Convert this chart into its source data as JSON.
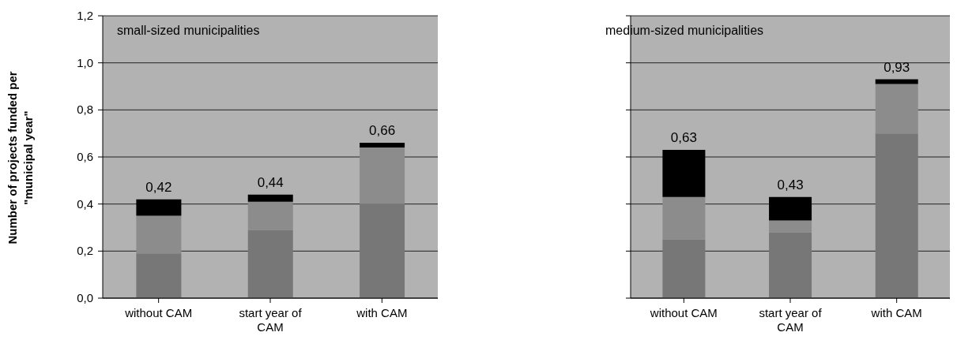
{
  "chart_data": [
    {
      "type": "bar",
      "title": "small-sized municipalities",
      "ylabel": "Number of projects funded per \"municipal year\"",
      "categories": [
        "without CAM",
        "start year of CAM",
        "with CAM"
      ],
      "stacked": true,
      "series": [
        {
          "color": "#777777",
          "values": [
            0.19,
            0.29,
            0.4
          ]
        },
        {
          "color": "#8c8c8c",
          "values": [
            0.16,
            0.12,
            0.24
          ]
        },
        {
          "color": "#000000",
          "values": [
            0.07,
            0.03,
            0.02
          ]
        }
      ],
      "totals": [
        "0,42",
        "0,44",
        "0,66"
      ],
      "ylim": [
        0,
        1.2
      ],
      "yticks": [
        {
          "value": 0,
          "label": "0,0"
        },
        {
          "value": 0.2,
          "label": "0,2"
        },
        {
          "value": 0.4,
          "label": "0,4"
        },
        {
          "value": 0.6,
          "label": "0,6"
        },
        {
          "value": 0.8,
          "label": "0,8"
        },
        {
          "value": 1.0,
          "label": "1,0"
        },
        {
          "value": 1.2,
          "label": "1,2"
        }
      ],
      "grid": "y",
      "legend": false
    },
    {
      "type": "bar",
      "title": "medium-sized municipalities",
      "categories": [
        "without CAM",
        "start year of CAM",
        "with CAM"
      ],
      "stacked": true,
      "series": [
        {
          "color": "#777777",
          "values": [
            0.25,
            0.28,
            0.7
          ]
        },
        {
          "color": "#8c8c8c",
          "values": [
            0.18,
            0.05,
            0.21
          ]
        },
        {
          "color": "#000000",
          "values": [
            0.2,
            0.1,
            0.02
          ]
        }
      ],
      "totals": [
        "0,63",
        "0,43",
        "0,93"
      ],
      "ylim": [
        0,
        1.2
      ],
      "yticks": [
        {
          "value": 0,
          "label": null
        },
        {
          "value": 0.2,
          "label": null
        },
        {
          "value": 0.4,
          "label": null
        },
        {
          "value": 0.6,
          "label": null
        },
        {
          "value": 0.8,
          "label": null
        },
        {
          "value": 1.0,
          "label": null
        },
        {
          "value": 1.2,
          "label": null
        }
      ],
      "tick_labels": "x",
      "grid": "y",
      "legend": false
    }
  ]
}
